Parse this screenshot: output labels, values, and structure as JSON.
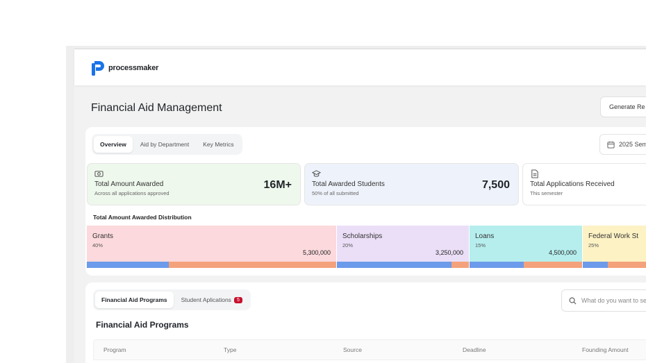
{
  "app": {
    "logo_text": "processmaker"
  },
  "header": {
    "title": "Financial Aid Management",
    "generate_button": "Generate Re"
  },
  "overview": {
    "tabs": [
      {
        "label": "Overview",
        "active": true
      },
      {
        "label": "Aid by Department",
        "active": false
      },
      {
        "label": "Key Metrics",
        "active": false
      }
    ],
    "date_button": "2025 Sem"
  },
  "stats": [
    {
      "label": "Total Amount Awarded",
      "sub": "Across all applications approved",
      "value": "16M+",
      "bg": "#eef8ec",
      "icon": "money-icon"
    },
    {
      "label": "Total Awarded Students",
      "sub": "50% of all submitted",
      "value": "7,500",
      "bg": "#eef3fb",
      "icon": "graduation-cap-icon"
    },
    {
      "label": "Total Applications Received",
      "sub": "This semester",
      "value": "",
      "bg": "#ffffff",
      "icon": "document-icon"
    }
  ],
  "distribution": {
    "title": "Total Amount Awarded Distribution",
    "segments": [
      {
        "name": "Grants",
        "percent": "40%",
        "amount": "5,300,000",
        "color": "#fcd9dc",
        "bar_blue_fraction": 0.33
      },
      {
        "name": "Scholarships",
        "percent": "20%",
        "amount": "3,250,000",
        "color": "#ebdff7",
        "bar_blue_fraction": 0.87
      },
      {
        "name": "Loans",
        "percent": "15%",
        "amount": "4,500,000",
        "color": "#b6eeee",
        "bar_blue_fraction": 0.48
      },
      {
        "name": "Federal Work St",
        "percent": "25%",
        "amount": "",
        "color": "#fdf2c4",
        "bar_blue_fraction": 0.3
      }
    ]
  },
  "programs": {
    "tabs": [
      {
        "label": "Financial Aid Programs",
        "active": true
      },
      {
        "label": "Student Aplications",
        "active": false,
        "badge": "5"
      }
    ],
    "search_placeholder": "What do you want to se",
    "section_title": "Financial Aid Programs",
    "columns": [
      "Program",
      "Type",
      "Source",
      "Deadline",
      "Founding Amount"
    ]
  }
}
